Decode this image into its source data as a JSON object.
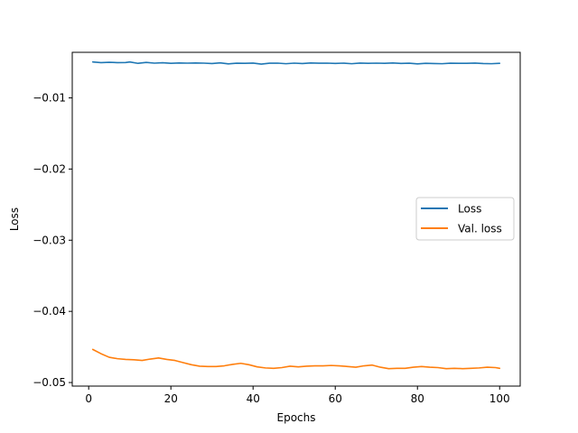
{
  "chart_data": {
    "type": "line",
    "xlabel": "Epochs",
    "ylabel": "Loss",
    "xlim": [
      -4,
      105
    ],
    "ylim": [
      -0.0505,
      -0.0036
    ],
    "xticks": [
      0,
      20,
      40,
      60,
      80,
      100
    ],
    "xtick_labels": [
      "0",
      "20",
      "40",
      "60",
      "80",
      "100"
    ],
    "yticks": [
      -0.01,
      -0.02,
      -0.03,
      -0.04,
      -0.05
    ],
    "ytick_labels": [
      "−0.01",
      "−0.02",
      "−0.03",
      "−0.04",
      "−0.05"
    ],
    "legend_position": "center-right",
    "grid": false,
    "series": [
      {
        "name": "Loss",
        "color": "#1f77b4",
        "x": [
          1,
          3,
          5,
          7,
          9,
          10,
          12,
          14,
          16,
          18,
          20,
          22,
          24,
          26,
          28,
          30,
          32,
          34,
          36,
          38,
          40,
          42,
          44,
          46,
          48,
          50,
          52,
          54,
          56,
          58,
          60,
          62,
          64,
          66,
          68,
          70,
          72,
          74,
          76,
          78,
          80,
          82,
          84,
          86,
          88,
          90,
          92,
          94,
          96,
          98,
          100
        ],
        "y": [
          -0.00495,
          -0.00505,
          -0.005,
          -0.00505,
          -0.00503,
          -0.00495,
          -0.00515,
          -0.00502,
          -0.00512,
          -0.00507,
          -0.00515,
          -0.0051,
          -0.00512,
          -0.0051,
          -0.00512,
          -0.00517,
          -0.00508,
          -0.00522,
          -0.00513,
          -0.00515,
          -0.00511,
          -0.00525,
          -0.00513,
          -0.00512,
          -0.0052,
          -0.00512,
          -0.00517,
          -0.0051,
          -0.00513,
          -0.00512,
          -0.00516,
          -0.00512,
          -0.0052,
          -0.00511,
          -0.00515,
          -0.00512,
          -0.00515,
          -0.0051,
          -0.00516,
          -0.00513,
          -0.00522,
          -0.00515,
          -0.00517,
          -0.0052,
          -0.00513,
          -0.00515,
          -0.00514,
          -0.00511,
          -0.00518,
          -0.0052,
          -0.00515
        ]
      },
      {
        "name": "Val. loss",
        "color": "#ff7f0e",
        "x": [
          1,
          3,
          5,
          7,
          9,
          11,
          13,
          15,
          17,
          19,
          21,
          23,
          25,
          27,
          29,
          31,
          33,
          35,
          37,
          39,
          41,
          43,
          45,
          47,
          49,
          51,
          53,
          55,
          57,
          59,
          61,
          63,
          65,
          67,
          69,
          71,
          73,
          75,
          77,
          79,
          81,
          83,
          85,
          87,
          89,
          91,
          93,
          95,
          97,
          99,
          100
        ],
        "y": [
          -0.04535,
          -0.04595,
          -0.04645,
          -0.04665,
          -0.04675,
          -0.0468,
          -0.0469,
          -0.0467,
          -0.04655,
          -0.04675,
          -0.0469,
          -0.0472,
          -0.0475,
          -0.0477,
          -0.04775,
          -0.04775,
          -0.04765,
          -0.04745,
          -0.0473,
          -0.0475,
          -0.0478,
          -0.04795,
          -0.048,
          -0.0479,
          -0.0477,
          -0.0478,
          -0.0477,
          -0.04765,
          -0.04765,
          -0.0476,
          -0.04765,
          -0.04775,
          -0.04785,
          -0.04765,
          -0.04755,
          -0.04785,
          -0.04805,
          -0.048,
          -0.048,
          -0.04785,
          -0.04775,
          -0.04785,
          -0.0479,
          -0.04805,
          -0.048,
          -0.04805,
          -0.048,
          -0.04795,
          -0.04785,
          -0.0479,
          -0.048
        ]
      }
    ]
  }
}
